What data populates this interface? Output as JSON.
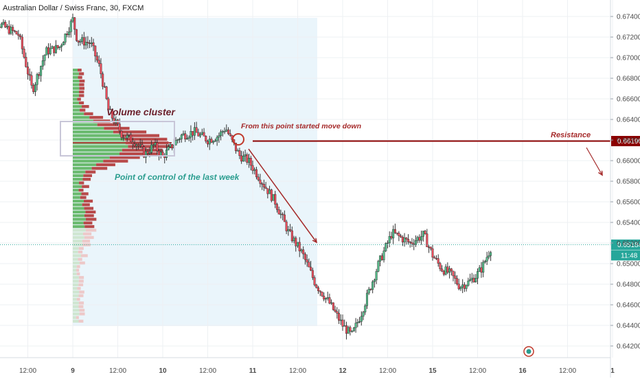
{
  "chart_data": {
    "type": "candlestick",
    "title": "Australian Dollar / Swiss Franc, 30, FXCM",
    "ylim": [
      0.6412,
      0.6752
    ],
    "y_ticks": [
      {
        "label": "0.67400",
        "value": 0.674
      },
      {
        "label": "0.67200",
        "value": 0.672
      },
      {
        "label": "0.67000",
        "value": 0.67
      },
      {
        "label": "0.66800",
        "value": 0.668
      },
      {
        "label": "0.66600",
        "value": 0.666
      },
      {
        "label": "0.66400",
        "value": 0.664
      },
      {
        "label": "0.66200",
        "value": 0.662
      },
      {
        "label": "0.66000",
        "value": 0.66
      },
      {
        "label": "0.65800",
        "value": 0.658
      },
      {
        "label": "0.65600",
        "value": 0.656
      },
      {
        "label": "0.65400",
        "value": 0.654
      },
      {
        "label": "0.65200",
        "value": 0.652
      },
      {
        "label": "0.65000",
        "value": 0.65
      },
      {
        "label": "0.64800",
        "value": 0.648
      },
      {
        "label": "0.64600",
        "value": 0.646
      },
      {
        "label": "0.64400",
        "value": 0.644
      },
      {
        "label": "0.64200",
        "value": 0.642
      }
    ],
    "x_ticks": [
      {
        "label": "12:00",
        "day": 8.5
      },
      {
        "label": "9",
        "day": 9,
        "bold": true
      },
      {
        "label": "12:00",
        "day": 9.5
      },
      {
        "label": "10",
        "day": 10,
        "bold": true
      },
      {
        "label": "12:00",
        "day": 10.5
      },
      {
        "label": "11",
        "day": 11,
        "bold": true
      },
      {
        "label": "12:00",
        "day": 11.5
      },
      {
        "label": "12",
        "day": 12,
        "bold": true
      },
      {
        "label": "12:00",
        "day": 12.5
      },
      {
        "label": "15",
        "day": 13,
        "bold": true
      },
      {
        "label": "12:00",
        "day": 13.5
      },
      {
        "label": "16",
        "day": 14,
        "bold": true
      },
      {
        "label": "12:00",
        "day": 14.5
      },
      {
        "label": "1",
        "day": 15,
        "bold": true
      }
    ],
    "last_price": {
      "label": "0.65184",
      "value": 0.65184,
      "countdown": "11:48"
    },
    "resistance": {
      "label": "0.66190",
      "value": 0.6619,
      "text": "Resistance"
    },
    "annotations": {
      "volume_cluster": "Volume cluster",
      "poc": "Point of control of the last week",
      "move_down": "From this point started move down"
    },
    "grid": true,
    "colors": {
      "up": "#53b987",
      "down": "#eb4d5c",
      "wick": "#333333",
      "annotation_red": "#a52a2a",
      "annotation_dark": "#6b1f2a",
      "annotation_teal": "#2a9d8f",
      "range_fill": "#eaf5fb",
      "profile_up": "#6aba6e",
      "profile_down": "#b84b4b"
    },
    "anchors": [
      [
        8.0,
        0.672
      ],
      [
        8.15,
        0.6734
      ],
      [
        8.4,
        0.6722
      ],
      [
        8.55,
        0.6668
      ],
      [
        8.7,
        0.6706
      ],
      [
        8.85,
        0.671
      ],
      [
        9.0,
        0.6737
      ],
      [
        9.05,
        0.6717
      ],
      [
        9.2,
        0.6714
      ],
      [
        9.3,
        0.669
      ],
      [
        9.4,
        0.6648
      ],
      [
        9.55,
        0.6625
      ],
      [
        9.7,
        0.6618
      ],
      [
        9.8,
        0.6606
      ],
      [
        9.9,
        0.6615
      ],
      [
        10.0,
        0.6604
      ],
      [
        10.2,
        0.6624
      ],
      [
        10.35,
        0.6628
      ],
      [
        10.5,
        0.662
      ],
      [
        10.62,
        0.6624
      ],
      [
        10.7,
        0.6632
      ],
      [
        10.75,
        0.6622
      ],
      [
        10.85,
        0.6605
      ],
      [
        10.95,
        0.66
      ],
      [
        11.1,
        0.658
      ],
      [
        11.25,
        0.656
      ],
      [
        11.4,
        0.653
      ],
      [
        11.55,
        0.651
      ],
      [
        11.7,
        0.648
      ],
      [
        11.85,
        0.6462
      ],
      [
        12.0,
        0.644
      ],
      [
        12.1,
        0.643
      ],
      [
        12.2,
        0.645
      ],
      [
        12.3,
        0.6475
      ],
      [
        12.4,
        0.65
      ],
      [
        12.55,
        0.653
      ],
      [
        12.65,
        0.6525
      ],
      [
        12.75,
        0.652
      ],
      [
        12.9,
        0.6528
      ],
      [
        13.0,
        0.6508
      ],
      [
        13.1,
        0.6495
      ],
      [
        13.2,
        0.649
      ],
      [
        13.3,
        0.6478
      ],
      [
        13.4,
        0.6482
      ],
      [
        13.48,
        0.6488
      ],
      [
        13.55,
        0.6496
      ],
      [
        13.62,
        0.651
      ],
      [
        13.65,
        0.6516
      ]
    ]
  }
}
